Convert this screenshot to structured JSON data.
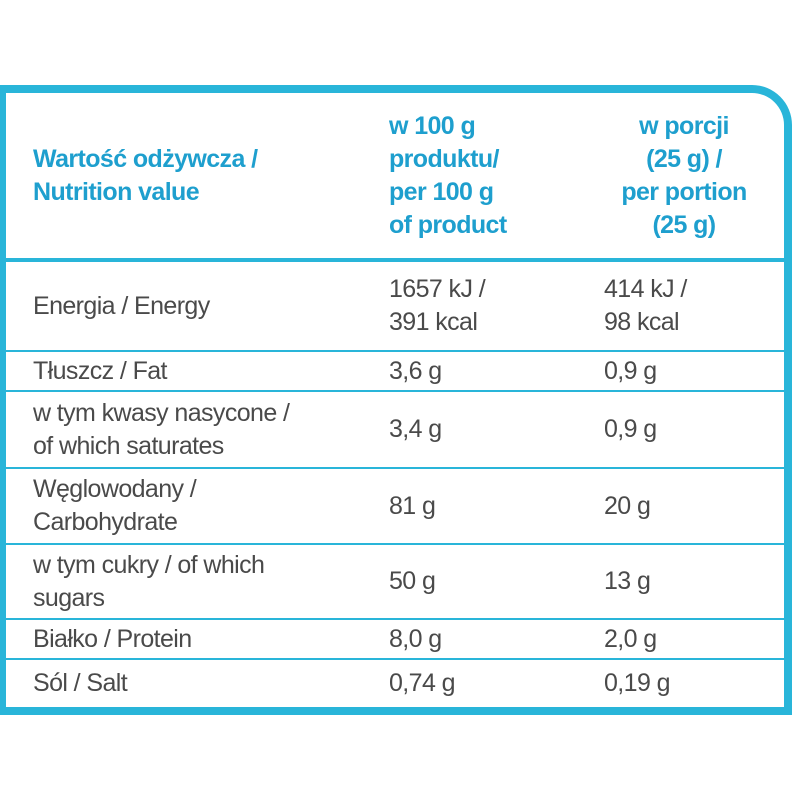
{
  "header": {
    "cells": [
      [
        "Wartość odżywcza /",
        "Nutrition value"
      ],
      [
        "w 100 g",
        "produktu/",
        "per 100 g",
        "of product"
      ],
      [
        "w porcji",
        "(25 g) /",
        "per portion",
        "(25 g)"
      ]
    ]
  },
  "rows": [
    [
      [
        "Energia / Energy"
      ],
      [
        "1657 kJ /",
        "391 kcal"
      ],
      [
        "414 kJ /",
        "98 kcal"
      ]
    ],
    [
      [
        "Tłuszcz / Fat"
      ],
      [
        "3,6 g"
      ],
      [
        "0,9 g"
      ]
    ],
    [
      [
        "w tym kwasy nasycone /",
        "of which saturates"
      ],
      [
        "3,4 g"
      ],
      [
        "0,9 g"
      ]
    ],
    [
      [
        "Węglowodany /",
        "Carbohydrate"
      ],
      [
        "81 g"
      ],
      [
        "20 g"
      ]
    ],
    [
      [
        "w tym cukry / of which",
        "sugars"
      ],
      [
        "50 g"
      ],
      [
        "13 g"
      ]
    ],
    [
      [
        "Białko / Protein"
      ],
      [
        "8,0 g"
      ],
      [
        "2,0 g"
      ]
    ],
    [
      [
        "Sól / Salt"
      ],
      [
        "0,74 g"
      ],
      [
        "0,19 g"
      ]
    ]
  ]
}
